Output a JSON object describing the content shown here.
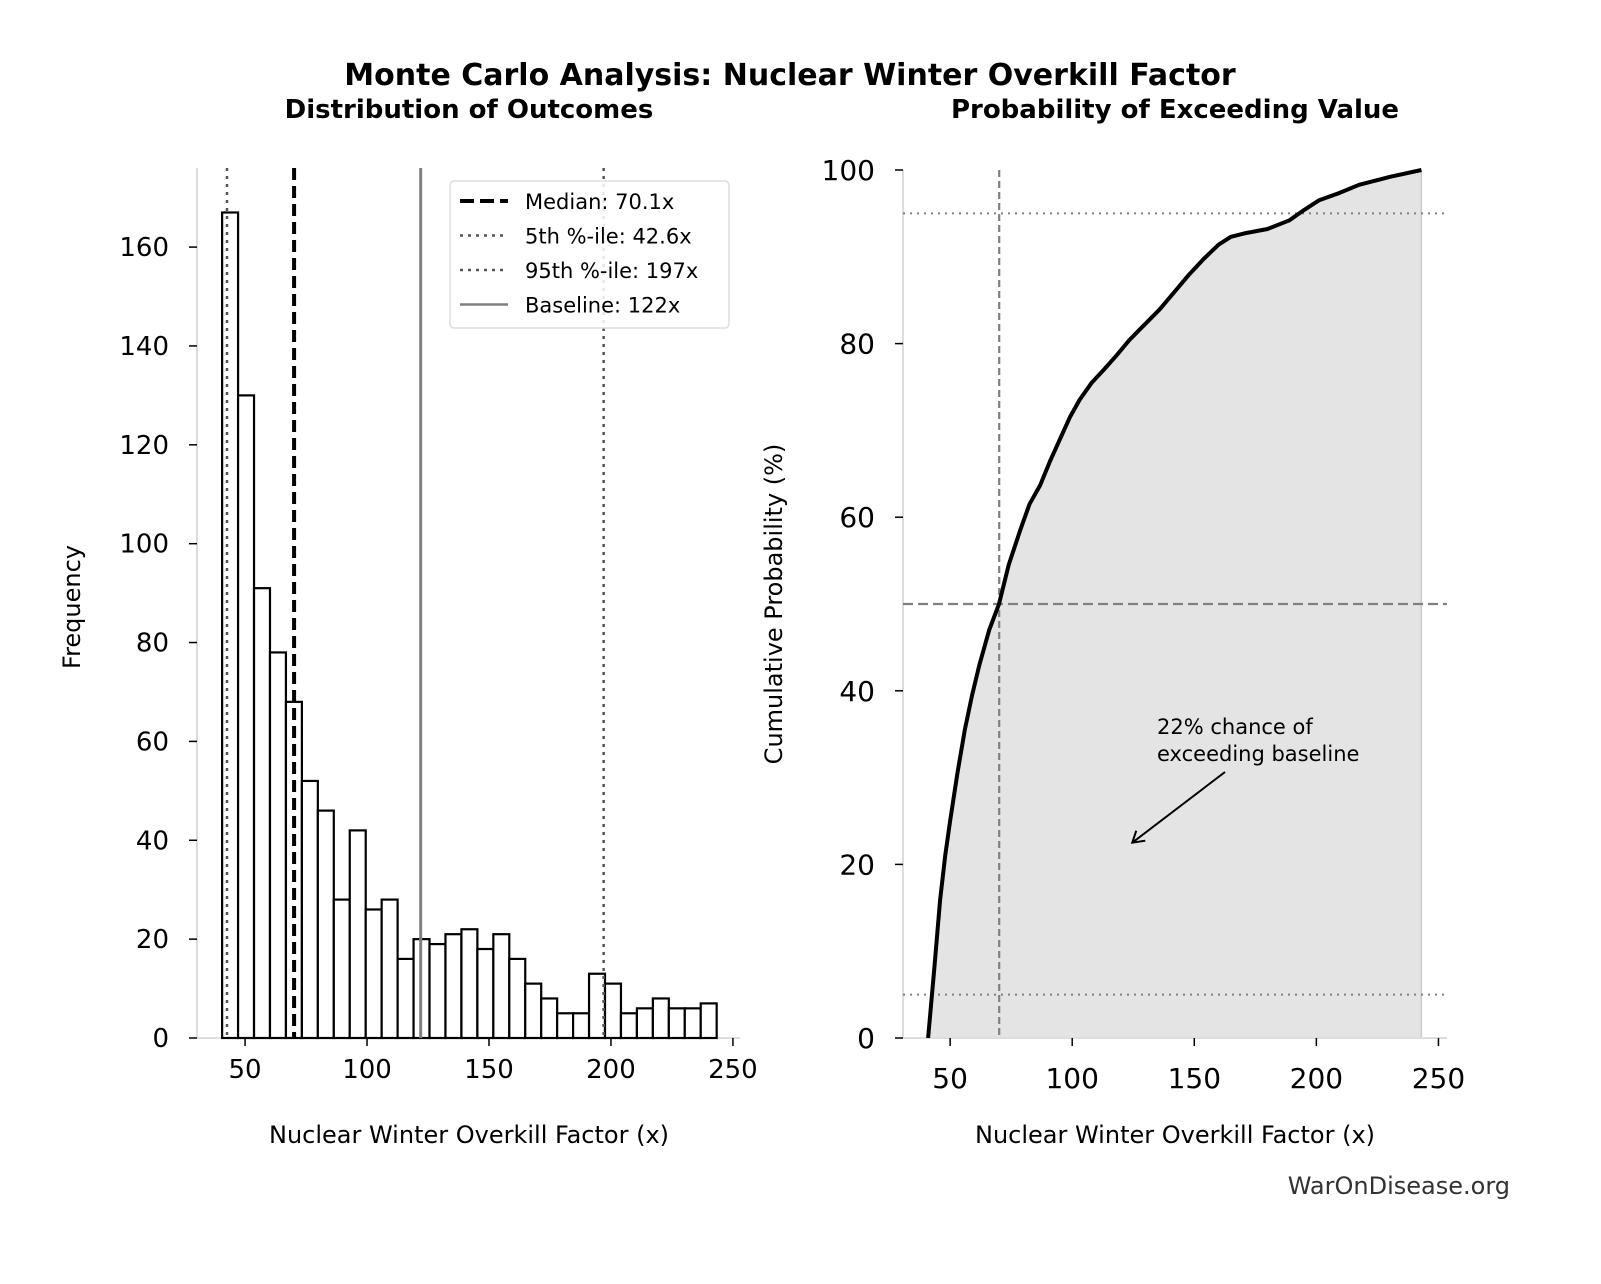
{
  "figure": {
    "title": "Monte Carlo Analysis: Nuclear Winter Overkill Factor",
    "watermark": "WarOnDisease.org"
  },
  "chart_data": [
    {
      "type": "bar",
      "subtitle": "Distribution of Outcomes",
      "xlabel": "Nuclear Winter Overkill Factor (x)",
      "ylabel": "Frequency",
      "xlim": [
        30.3,
        252.9
      ],
      "ylim": [
        0,
        176
      ],
      "xticks": [
        "50",
        "100",
        "150",
        "200",
        "250"
      ],
      "yticks": [
        "0",
        "20",
        "40",
        "60",
        "80",
        "100",
        "120",
        "140",
        "160"
      ],
      "grid": false,
      "bin_start": 40.6,
      "bin_width": 6.54,
      "values": [
        167,
        130,
        91,
        78,
        68,
        52,
        46,
        28,
        42,
        26,
        28,
        16,
        20,
        19,
        21,
        22,
        18,
        21,
        16,
        11,
        8,
        5,
        5,
        13,
        11,
        5,
        6,
        8,
        6,
        6,
        7
      ],
      "bar_fill": "#ffffff",
      "bar_edge": "#000000",
      "reference_lines": [
        {
          "label": "Median: 70.1x",
          "value": 70.1,
          "style": "dashed",
          "color": "#000000"
        },
        {
          "label": "5th %-ile: 42.6x",
          "value": 42.6,
          "style": "dotted",
          "color": "#555555"
        },
        {
          "label": "95th %-ile: 197x",
          "value": 197,
          "style": "dotted",
          "color": "#555555"
        },
        {
          "label": "Baseline: 122x",
          "value": 122,
          "style": "solid",
          "color": "#808080"
        }
      ],
      "legend_position": "top-right"
    },
    {
      "type": "area",
      "subtitle": "Probability of Exceeding Value",
      "xlabel": "Nuclear Winter Overkill Factor (x)",
      "ylabel": "Cumulative Probability (%)",
      "xlim": [
        30.7,
        253.5
      ],
      "ylim": [
        0,
        100
      ],
      "xticks": [
        "50",
        "100",
        "150",
        "200",
        "250"
      ],
      "yticks": [
        "0",
        "20",
        "40",
        "60",
        "80",
        "100"
      ],
      "grid": false,
      "fill_color": "#e4e4e4",
      "line_color": "#000000",
      "x": [
        41,
        43.5,
        45.9,
        48,
        50,
        53,
        56,
        59,
        62,
        66,
        70,
        74,
        78.7,
        82.5,
        86.9,
        91,
        95,
        99,
        103,
        108,
        113,
        118,
        123.4,
        129,
        135.7,
        142,
        148,
        154,
        160,
        165,
        170.5,
        180,
        189,
        195,
        201,
        209,
        217.5,
        230,
        243
      ],
      "y": [
        0,
        8,
        15.9,
        21,
        25,
        30.5,
        35.5,
        39.5,
        43,
        47,
        50,
        54.5,
        58.5,
        61.5,
        63.7,
        66.5,
        69,
        71.5,
        73.5,
        75.5,
        77,
        78.6,
        80.4,
        82,
        83.9,
        86,
        88,
        89.8,
        91.4,
        92.3,
        92.7,
        93.2,
        94.2,
        95.4,
        96.5,
        97.3,
        98.3,
        99.2,
        100
      ],
      "reference_lines": [
        {
          "axis": "x",
          "value": 70.1,
          "style": "dashed",
          "color": "#808080"
        },
        {
          "axis": "y",
          "value": 50,
          "style": "dashed",
          "color": "#808080"
        },
        {
          "axis": "y",
          "value": 5,
          "style": "dotted",
          "color": "#808080"
        },
        {
          "axis": "y",
          "value": 95,
          "style": "dotted",
          "color": "#808080"
        }
      ],
      "annotation": {
        "text_lines": [
          "22% chance of",
          "exceeding baseline"
        ],
        "arrow_to": [
          124.6,
          22.5
        ]
      }
    }
  ]
}
